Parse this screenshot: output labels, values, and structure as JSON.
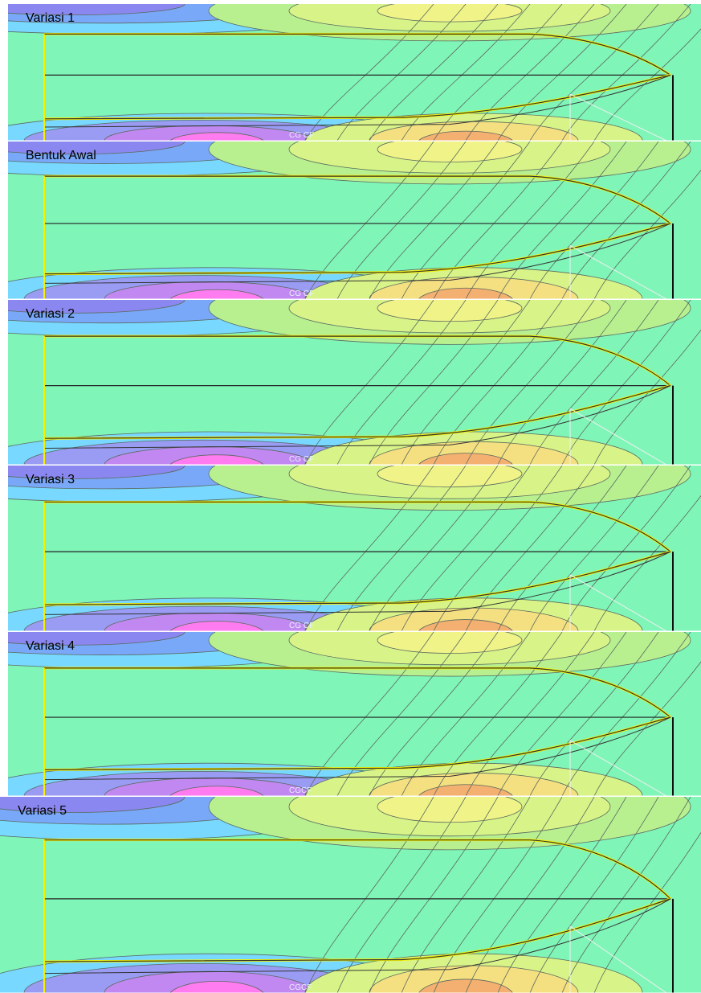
{
  "panels": [
    {
      "label": "Variasi 1",
      "marker": "CG CF"
    },
    {
      "label": "Bentuk Awal",
      "marker": "CG CF"
    },
    {
      "label": "Variasi 2",
      "marker": "CG CF"
    },
    {
      "label": "Variasi 3",
      "marker": "CG CF"
    },
    {
      "label": "Variasi 4",
      "marker": "CGCF"
    },
    {
      "label": "Variasi 5",
      "marker": "CGCF"
    }
  ]
}
